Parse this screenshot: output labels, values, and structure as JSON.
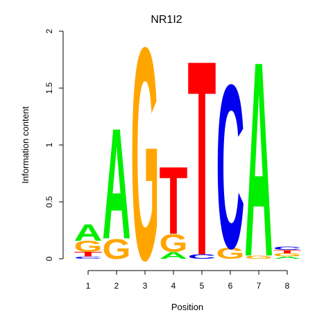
{
  "chart_data": {
    "type": "sequence-logo",
    "title": "NR1I2",
    "xlabel": "Position",
    "ylabel": "Information content",
    "ylim": [
      0,
      2
    ],
    "y_ticks": [
      "0",
      "0.5",
      "1",
      "1.5",
      "2"
    ],
    "positions": [
      "1",
      "2",
      "3",
      "4",
      "5",
      "6",
      "7",
      "8"
    ],
    "colors": {
      "A": "#00ee00",
      "C": "#0000ee",
      "G": "#ffa500",
      "T": "#ff0000"
    },
    "stacks": [
      [
        {
          "letter": "C",
          "height": 0.02
        },
        {
          "letter": "T",
          "height": 0.04
        },
        {
          "letter": "G",
          "height": 0.1
        },
        {
          "letter": "A",
          "height": 0.15
        }
      ],
      [
        {
          "letter": "G",
          "height": 0.18
        },
        {
          "letter": "A",
          "height": 1.0
        }
      ],
      [
        {
          "letter": "G",
          "height": 1.92
        }
      ],
      [
        {
          "letter": "A",
          "height": 0.06
        },
        {
          "letter": "G",
          "height": 0.16
        },
        {
          "letter": "T",
          "height": 0.61
        }
      ],
      [
        {
          "letter": "C",
          "height": 0.04
        },
        {
          "letter": "T",
          "height": 1.76
        }
      ],
      [
        {
          "letter": "G",
          "height": 0.1
        },
        {
          "letter": "C",
          "height": 1.48
        }
      ],
      [
        {
          "letter": "G",
          "height": 0.03
        },
        {
          "letter": "A",
          "height": 1.76
        }
      ],
      [
        {
          "letter": "A",
          "height": 0.02
        },
        {
          "letter": "G",
          "height": 0.03
        },
        {
          "letter": "T",
          "height": 0.03
        },
        {
          "letter": "C",
          "height": 0.03
        }
      ]
    ]
  }
}
